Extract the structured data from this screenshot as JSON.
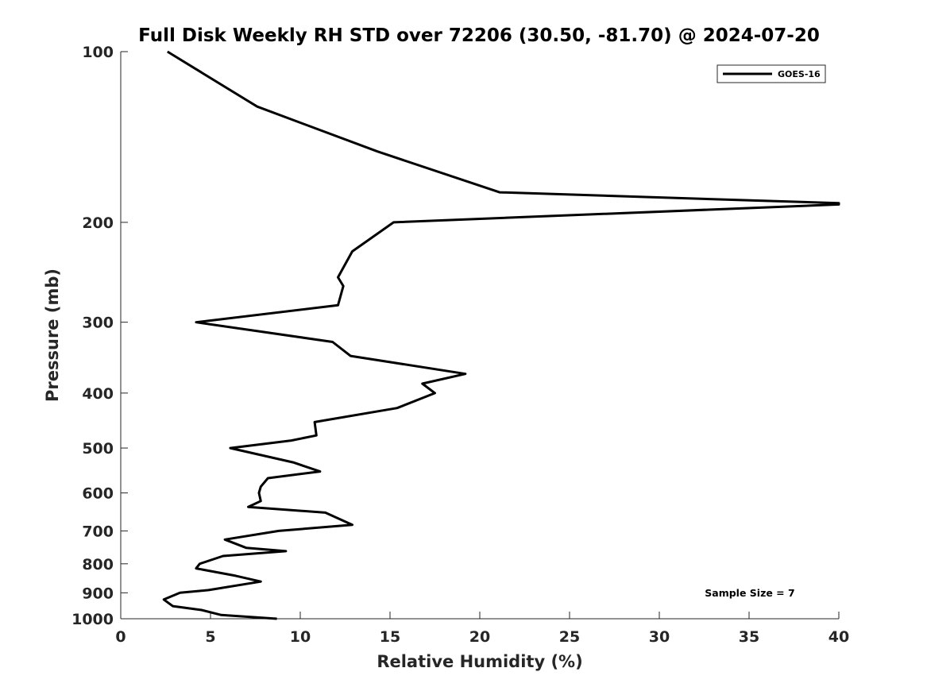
{
  "chart_data": {
    "type": "line",
    "title": "Full Disk Weekly RH STD over 72206 (30.50, -81.70) @ 2024-07-20",
    "xlabel": "Relative Humidity (%)",
    "ylabel": "Pressure (mb)",
    "xlim": [
      0,
      40
    ],
    "ylim": [
      100,
      1000
    ],
    "y_scale": "log",
    "y_reversed": true,
    "x_ticks": [
      "0",
      "5",
      "10",
      "15",
      "20",
      "25",
      "30",
      "35",
      "40"
    ],
    "y_ticks": [
      "100",
      "200",
      "300",
      "400",
      "500",
      "600",
      "700",
      "800",
      "900",
      "1000"
    ],
    "legend": {
      "placement": "top-right",
      "entries": [
        "GOES-16"
      ]
    },
    "annotation": "Sample Size = 7",
    "grid": false,
    "series": [
      {
        "name": "GOES-16",
        "color": "#000000",
        "points": [
          [
            2.6,
            100
          ],
          [
            7.6,
            125
          ],
          [
            14.3,
            150
          ],
          [
            21.1,
            177
          ],
          [
            40.0,
            185
          ],
          [
            40.0,
            186
          ],
          [
            15.2,
            200
          ],
          [
            12.9,
            225
          ],
          [
            12.1,
            250
          ],
          [
            12.4,
            259
          ],
          [
            12.1,
            280
          ],
          [
            4.2,
            300
          ],
          [
            11.8,
            325
          ],
          [
            12.8,
            344
          ],
          [
            19.2,
            370
          ],
          [
            16.8,
            385
          ],
          [
            17.5,
            400
          ],
          [
            15.4,
            425
          ],
          [
            10.8,
            450
          ],
          [
            10.9,
            475
          ],
          [
            9.5,
            485
          ],
          [
            6.1,
            500
          ],
          [
            9.6,
            530
          ],
          [
            11.1,
            550
          ],
          [
            8.2,
            565
          ],
          [
            7.8,
            585
          ],
          [
            7.7,
            600
          ],
          [
            7.8,
            620
          ],
          [
            7.1,
            635
          ],
          [
            11.4,
            650
          ],
          [
            12.9,
            683
          ],
          [
            8.8,
            700
          ],
          [
            5.8,
            725
          ],
          [
            7.0,
            750
          ],
          [
            9.2,
            760
          ],
          [
            5.7,
            775
          ],
          [
            4.4,
            800
          ],
          [
            4.2,
            815
          ],
          [
            6.4,
            840
          ],
          [
            7.8,
            860
          ],
          [
            4.9,
            890
          ],
          [
            3.3,
            900
          ],
          [
            2.4,
            925
          ],
          [
            2.9,
            950
          ],
          [
            4.5,
            965
          ],
          [
            5.6,
            985
          ],
          [
            8.7,
            1000
          ]
        ]
      }
    ]
  }
}
